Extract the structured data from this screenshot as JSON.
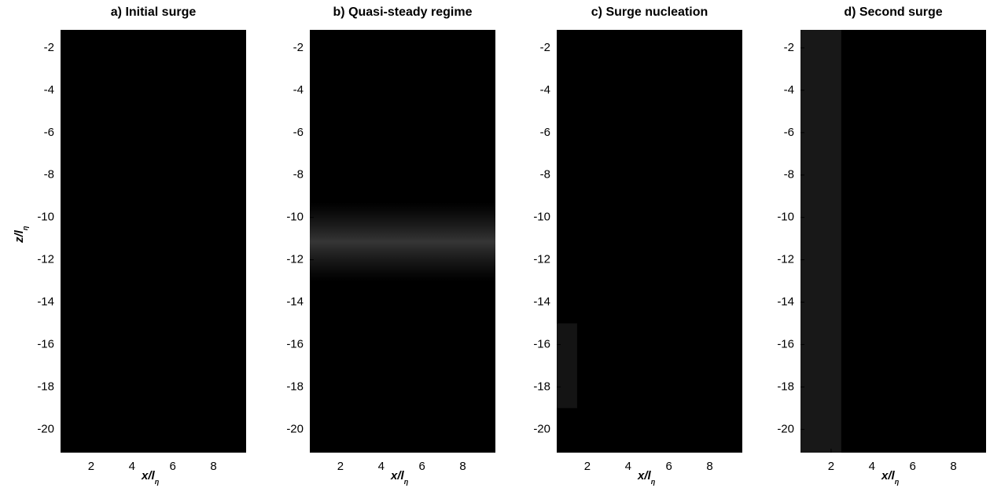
{
  "chart_data": [
    {
      "type": "image",
      "title": "a) Initial surge",
      "xlabel": "x/l",
      "xlabel_subscript": "η",
      "ylabel": "z/l",
      "ylabel_subscript": "η",
      "xlim": [
        0.5,
        9.6
      ],
      "ylim": [
        -21.1,
        -1.15
      ],
      "xticks": [
        2,
        4,
        6,
        8
      ],
      "yticks": [
        -2,
        -4,
        -6,
        -8,
        -10,
        -12,
        -14,
        -16,
        -18,
        -20
      ],
      "color": "#000000"
    },
    {
      "type": "image",
      "title": "b) Quasi-steady regime",
      "xlabel": "x/l",
      "xlabel_subscript": "η",
      "xlim": [
        0.5,
        9.6
      ],
      "ylim": [
        -21.1,
        -1.15
      ],
      "xticks": [
        2,
        4,
        6,
        8
      ],
      "yticks": [
        -2,
        -4,
        -6,
        -8,
        -10,
        -12,
        -14,
        -16,
        -18,
        -20
      ],
      "color": "#000000"
    },
    {
      "type": "image",
      "title": "c) Surge nucleation",
      "xlabel": "x/l",
      "xlabel_subscript": "η",
      "xlim": [
        0.5,
        9.6
      ],
      "ylim": [
        -21.1,
        -1.15
      ],
      "xticks": [
        2,
        4,
        6,
        8
      ],
      "yticks": [
        -2,
        -4,
        -6,
        -8,
        -10,
        -12,
        -14,
        -16,
        -18,
        -20
      ],
      "color": "#000000"
    },
    {
      "type": "image",
      "title": "d) Second surge",
      "xlabel": "x/l",
      "xlabel_subscript": "η",
      "xlim": [
        0.5,
        9.6
      ],
      "ylim": [
        -21.1,
        -1.15
      ],
      "xticks": [
        2,
        4,
        6,
        8
      ],
      "yticks": [
        -2,
        -4,
        -6,
        -8,
        -10,
        -12,
        -14,
        -16,
        -18,
        -20
      ],
      "color": "#000000"
    }
  ]
}
